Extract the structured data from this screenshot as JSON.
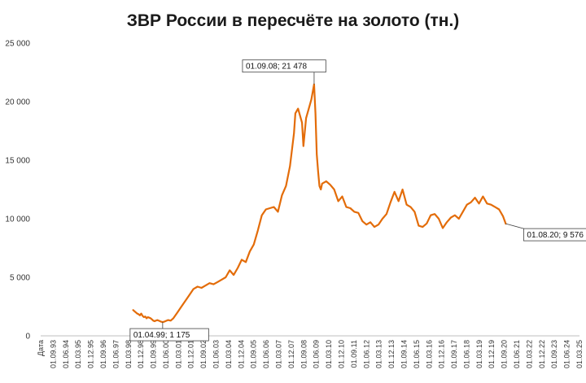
{
  "chart_data": {
    "type": "line",
    "title": "ЗВР России в пересчёте на золото (тн.)",
    "xlabel": "",
    "ylabel": "",
    "ylim": [
      0,
      25000
    ],
    "yticks": [
      0,
      5000,
      10000,
      15000,
      20000,
      25000
    ],
    "ytick_labels": [
      "0",
      "5 000",
      "10 000",
      "15 000",
      "20 000",
      "25 000"
    ],
    "x_start": "1991-09-01",
    "x_end": "2025-03-01",
    "xtick_labels": [
      "Дата",
      "01.09.93",
      "01.06.94",
      "01.03.95",
      "01.12.95",
      "01.09.96",
      "01.06.97",
      "01.03.98",
      "01.12.98",
      "01.09.99",
      "01.06.00",
      "01.03.01",
      "01.12.01",
      "01.09.02",
      "01.06.03",
      "01.03.04",
      "01.12.04",
      "01.09.05",
      "01.06.06",
      "01.03.07",
      "01.12.07",
      "01.09.08",
      "01.06.09",
      "01.03.10",
      "01.12.10",
      "01.09.11",
      "01.06.12",
      "01.03.13",
      "01.12.13",
      "01.09.14",
      "01.06.15",
      "01.03.16",
      "01.12.16",
      "01.09.17",
      "01.06.18",
      "01.03.19",
      "01.12.19",
      "01.09.20",
      "01.06.21",
      "01.03.22",
      "01.12.22",
      "01.09.23",
      "01.06.24",
      "01.03.25"
    ],
    "grid": false,
    "legend": "none",
    "series_color": "#E36C09",
    "series": [
      {
        "x": [
          "1997-06-01",
          "1997-07-01",
          "1997-08-01",
          "1997-09-01",
          "1997-10-01",
          "1997-11-01",
          "1997-12-01",
          "1998-01-01",
          "1998-02-01",
          "1998-03-01",
          "1998-04-01",
          "1998-05-01",
          "1998-06-01",
          "1998-07-01",
          "1998-08-01",
          "1998-09-01",
          "1998-10-01",
          "1998-11-01",
          "1998-12-01",
          "1999-01-01",
          "1999-02-01",
          "1999-03-01",
          "1999-04-01",
          "1999-05-01",
          "1999-06-01",
          "1999-08-01",
          "1999-10-01",
          "1999-12-01",
          "2000-03-01",
          "2000-06-01",
          "2000-09-01",
          "2000-12-01",
          "2001-03-01",
          "2001-06-01",
          "2001-09-01",
          "2001-12-01",
          "2002-03-01",
          "2002-06-01",
          "2002-09-01",
          "2002-12-01",
          "2003-03-01",
          "2003-06-01",
          "2003-09-01",
          "2003-12-01",
          "2004-03-01",
          "2004-06-01",
          "2004-09-01",
          "2004-12-01",
          "2005-03-01",
          "2005-06-01",
          "2005-09-01",
          "2005-12-01",
          "2006-03-01",
          "2006-06-01",
          "2006-09-01",
          "2006-12-01",
          "2007-03-01",
          "2007-06-01",
          "2007-07-01",
          "2007-09-01",
          "2007-12-01",
          "2008-01-01",
          "2008-03-01",
          "2008-05-01",
          "2008-07-01",
          "2008-09-01",
          "2008-10-01",
          "2008-11-01",
          "2008-12-01",
          "2009-01-01",
          "2009-02-01",
          "2009-03-01",
          "2009-06-01",
          "2009-09-01",
          "2009-12-01",
          "2010-03-01",
          "2010-06-01",
          "2010-09-01",
          "2010-12-01",
          "2011-03-01",
          "2011-06-01",
          "2011-09-01",
          "2011-12-01",
          "2012-03-01",
          "2012-06-01",
          "2012-09-01",
          "2012-12-01",
          "2013-03-01",
          "2013-06-01",
          "2013-09-01",
          "2013-12-01",
          "2014-03-01",
          "2014-06-01",
          "2014-09-01",
          "2014-12-01",
          "2015-03-01",
          "2015-06-01",
          "2015-09-01",
          "2015-12-01",
          "2016-03-01",
          "2016-06-01",
          "2016-09-01",
          "2016-12-01",
          "2017-03-01",
          "2017-06-01",
          "2017-09-01",
          "2017-12-01",
          "2018-03-01",
          "2018-06-01",
          "2018-09-01",
          "2018-12-01",
          "2019-03-01",
          "2019-06-01",
          "2019-09-01",
          "2019-12-01",
          "2020-03-01",
          "2020-06-01",
          "2020-08-01"
        ],
        "y": [
          2200,
          2100,
          2000,
          1900,
          1850,
          1750,
          1900,
          1700,
          1600,
          1650,
          1500,
          1600,
          1550,
          1500,
          1400,
          1300,
          1250,
          1300,
          1350,
          1300,
          1250,
          1200,
          1175,
          1200,
          1250,
          1350,
          1300,
          1500,
          2000,
          2500,
          3000,
          3500,
          4000,
          4200,
          4100,
          4300,
          4500,
          4400,
          4600,
          4800,
          5000,
          5600,
          5200,
          5800,
          6500,
          6300,
          7200,
          7800,
          9000,
          10300,
          10800,
          10900,
          11000,
          10600,
          12000,
          12800,
          14500,
          17300,
          19000,
          19400,
          18200,
          16200,
          18600,
          19400,
          20200,
          21478,
          19000,
          15500,
          14000,
          12800,
          12500,
          13000,
          13200,
          12900,
          12500,
          11500,
          11900,
          11000,
          10900,
          10600,
          10500,
          9800,
          9500,
          9700,
          9300,
          9500,
          10000,
          10400,
          11400,
          12300,
          11500,
          12500,
          11200,
          11000,
          10600,
          9400,
          9300,
          9600,
          10300,
          10400,
          10000,
          9200,
          9700,
          10100,
          10300,
          10000,
          10600,
          11200,
          11400,
          11800,
          11300,
          11900,
          11300,
          11200,
          11000,
          10800,
          10200,
          9576
        ]
      }
    ],
    "annotations": [
      {
        "label": "01.04.99; 1 175",
        "x": "1999-04-01",
        "y": 1175
      },
      {
        "label": "01.09.08; 21 478",
        "x": "2008-09-01",
        "y": 21478
      },
      {
        "label": "01.08.20; 9 576",
        "x": "2020-08-01",
        "y": 9576
      }
    ]
  }
}
